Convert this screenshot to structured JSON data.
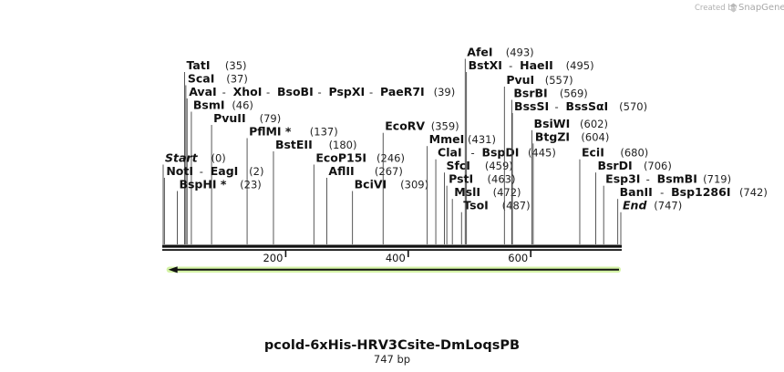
{
  "credit": {
    "prefix": "Created by",
    "brand": "SnapGene"
  },
  "map": {
    "title": "pcold-6xHis-HRV3Csite-DmLoqsPB",
    "length_label": "747 bp",
    "length": 747,
    "ticks": [
      {
        "pos": 200,
        "label": "200"
      },
      {
        "pos": 400,
        "label": "400"
      },
      {
        "pos": 600,
        "label": "600"
      }
    ],
    "feature": {
      "start": 1,
      "end": 747,
      "direction": "reverse",
      "color": "#a8e05a"
    }
  },
  "sites": [
    {
      "names": [
        "TatI"
      ],
      "pos": 35,
      "pos_label": "(35)",
      "row": 0
    },
    {
      "names": [
        "ScaI"
      ],
      "pos": 37,
      "pos_label": "(37)",
      "row": 1
    },
    {
      "names": [
        "AvaI",
        "XhoI",
        "BsoBI",
        "PspXI",
        "PaeR7I"
      ],
      "pos": 39,
      "pos_label": "(39)",
      "row": 2
    },
    {
      "names": [
        "BsmI"
      ],
      "pos": 46,
      "pos_label": "(46)",
      "row": 3
    },
    {
      "names": [
        "PvuII"
      ],
      "pos": 79,
      "pos_label": "(79)",
      "row": 4
    },
    {
      "names": [
        "PflMI *"
      ],
      "pos": 137,
      "pos_label": "(137)",
      "row": 5
    },
    {
      "names": [
        "BstEII"
      ],
      "pos": 180,
      "pos_label": "(180)",
      "row": 6
    },
    {
      "names": [
        "Start"
      ],
      "pos": 0,
      "pos_label": "(0)",
      "row": 7,
      "italic": true
    },
    {
      "names": [
        "NotI",
        "EagI"
      ],
      "pos": 2,
      "pos_label": "(2)",
      "row": 8
    },
    {
      "names": [
        "BspHI *"
      ],
      "pos": 23,
      "pos_label": "(23)",
      "row": 9
    },
    {
      "names": [
        "EcoP15I"
      ],
      "pos": 246,
      "pos_label": "(246)",
      "row": 7
    },
    {
      "names": [
        "AflII"
      ],
      "pos": 267,
      "pos_label": "(267)",
      "row": 8
    },
    {
      "names": [
        "BciVI"
      ],
      "pos": 309,
      "pos_label": "(309)",
      "row": 9
    },
    {
      "names": [
        "EcoRV"
      ],
      "pos": 359,
      "pos_label": "(359)",
      "row": 4.6
    },
    {
      "names": [
        "AfeI"
      ],
      "pos": 493,
      "pos_label": "(493)",
      "row": -1
    },
    {
      "names": [
        "BstXI",
        "HaeII"
      ],
      "pos": 495,
      "pos_label": "(495)",
      "row": 0
    },
    {
      "names": [
        "MmeI"
      ],
      "pos": 431,
      "pos_label": "(431)",
      "row": 5.6
    },
    {
      "names": [
        "ClaI",
        "BspDI"
      ],
      "pos": 445,
      "pos_label": "(445)",
      "row": 6.6
    },
    {
      "names": [
        "SfcI"
      ],
      "pos": 459,
      "pos_label": "(459)",
      "row": 7.6
    },
    {
      "names": [
        "PstI"
      ],
      "pos": 463,
      "pos_label": "(463)",
      "row": 8.6
    },
    {
      "names": [
        "MslI"
      ],
      "pos": 472,
      "pos_label": "(472)",
      "row": 9.6
    },
    {
      "names": [
        "TsoI"
      ],
      "pos": 487,
      "pos_label": "(487)",
      "row": 10.6
    },
    {
      "names": [
        "PvuI"
      ],
      "pos": 557,
      "pos_label": "(557)",
      "row": 1.1
    },
    {
      "names": [
        "BsrBI"
      ],
      "pos": 569,
      "pos_label": "(569)",
      "row": 2.1
    },
    {
      "names": [
        "BssSI",
        "BssSαI"
      ],
      "pos": 570,
      "pos_label": "(570)",
      "row": 3.1
    },
    {
      "names": [
        "BsiWI"
      ],
      "pos": 602,
      "pos_label": "(602)",
      "row": 4.4
    },
    {
      "names": [
        "BtgZI"
      ],
      "pos": 604,
      "pos_label": "(604)",
      "row": 5.4
    },
    {
      "names": [
        "EciI"
      ],
      "pos": 680,
      "pos_label": "(680)",
      "row": 6.6
    },
    {
      "names": [
        "BsrDI"
      ],
      "pos": 706,
      "pos_label": "(706)",
      "row": 7.6
    },
    {
      "names": [
        "Esp3I",
        "BsmBI"
      ],
      "pos": 719,
      "pos_label": "(719)",
      "row": 8.6
    },
    {
      "names": [
        "BanII",
        "Bsp1286I"
      ],
      "pos": 742,
      "pos_label": "(742)",
      "row": 9.6
    },
    {
      "names": [
        "End"
      ],
      "pos": 747,
      "pos_label": "(747)",
      "row": 10.6,
      "italic": true
    }
  ]
}
